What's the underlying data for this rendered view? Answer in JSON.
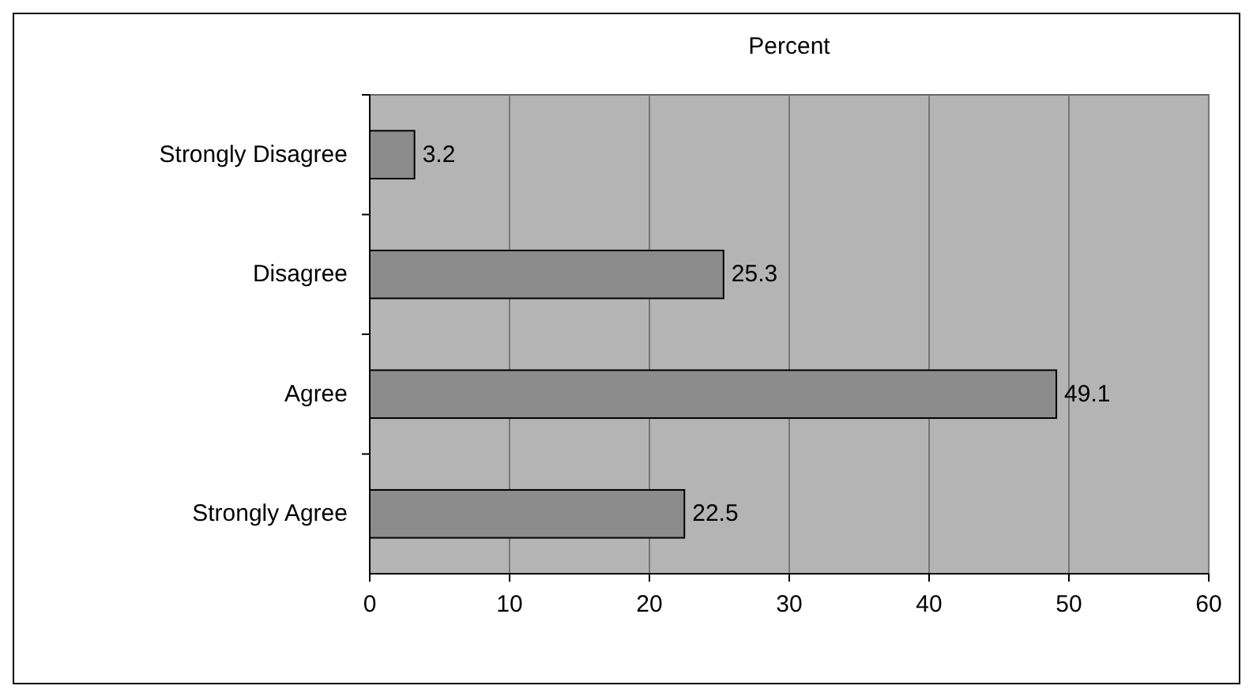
{
  "chart_data": {
    "type": "bar",
    "orientation": "horizontal",
    "title": "Percent",
    "categories": [
      "Strongly Disagree",
      "Disagree",
      "Agree",
      "Strongly Agree"
    ],
    "values": [
      3.2,
      25.3,
      49.1,
      22.5
    ],
    "color": "#8c8c8c",
    "xlim": [
      0,
      60
    ],
    "xticks": [
      0,
      10,
      20,
      30,
      40,
      50,
      60
    ],
    "grid": "x",
    "data_labels": true
  }
}
